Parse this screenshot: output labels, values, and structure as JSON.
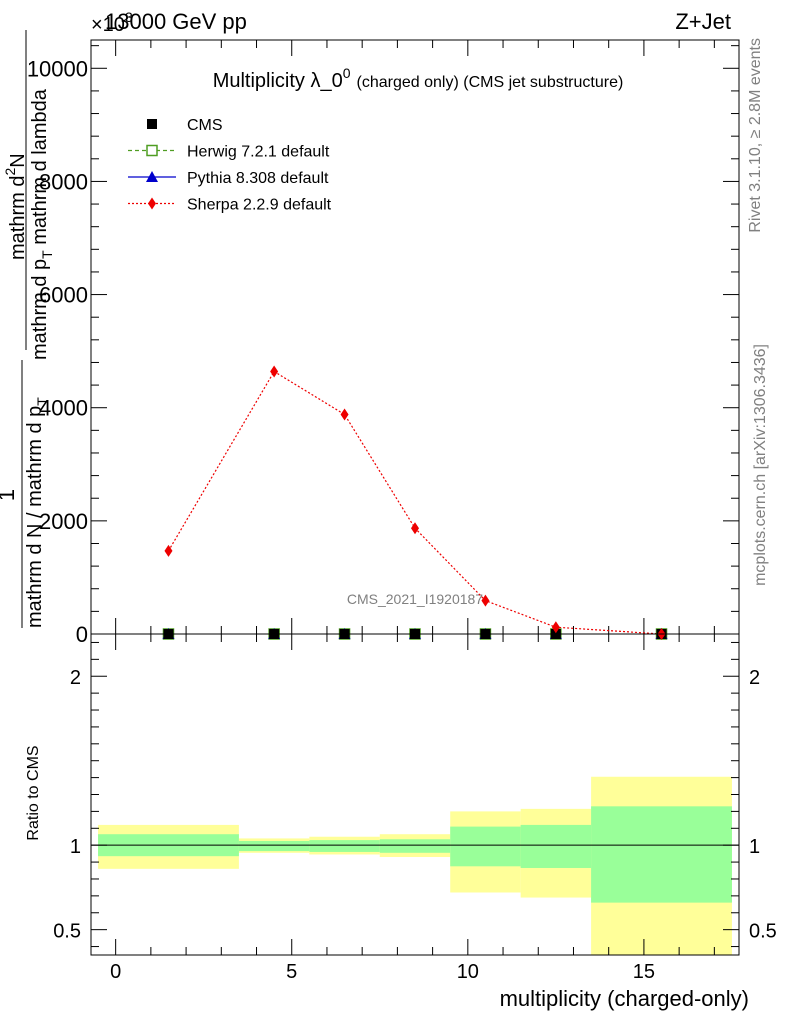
{
  "header": {
    "energy_label": "13000 GeV pp",
    "process_label": "Z+Jet",
    "exponent_label": "×10",
    "exponent_power": "3"
  },
  "side_labels": {
    "rivet": "Rivet 3.1.10, ≥ 2.8M events",
    "mcplots": "mcplots.cern.ch [arXiv:1306.3436]"
  },
  "chart_data": [
    {
      "type": "scatter",
      "title_main": "Multiplicity λ_0",
      "title_sup": "0",
      "title_small": "(charged only) (CMS jet substructure)",
      "watermark": "CMS_2021_I1920187",
      "ylabel_numerator_1": "mathrm d",
      "ylabel_numerator_sup": "2",
      "ylabel_numerator_2": "N",
      "ylabel_denominator_1": "mathrm d p",
      "ylabel_denominator_sub": "T",
      "ylabel_denominator_2": " mathrm d lambda",
      "ylabel_prefix_one": "1",
      "ylabel_prefix_den_1": "mathrm d N / mathrm d p",
      "ylabel_prefix_den_sub": "T",
      "ylim": [
        0,
        10500
      ],
      "xlim": [
        -0.7,
        17.7
      ],
      "y_ticks": [
        0,
        2000,
        4000,
        6000,
        8000,
        10000
      ],
      "y_tick_labels": [
        "0",
        "2000",
        "4000",
        "6000",
        "8000",
        "10000"
      ],
      "legend_position": "top-left",
      "legend": [
        {
          "name": "CMS",
          "color": "#000000",
          "marker": "square"
        },
        {
          "name": "Herwig 7.2.1 default",
          "color": "#4f9d22",
          "marker": "open-square",
          "line": "dashed"
        },
        {
          "name": "Pythia 8.308 default",
          "color": "#0000cc",
          "marker": "triangle",
          "line": "solid"
        },
        {
          "name": "Sherpa 2.2.9 default",
          "color": "#ee0000",
          "marker": "diamond",
          "line": "dotted"
        }
      ],
      "series": [
        {
          "name": "CMS",
          "x": [
            1.5,
            4.5,
            6.5,
            8.5,
            10.5,
            12.5,
            15.5
          ],
          "y": [
            0,
            0,
            0,
            0,
            0,
            0,
            0
          ]
        },
        {
          "name": "Sherpa 2.2.9 default",
          "x": [
            1.5,
            4.5,
            6.5,
            8.5,
            10.5,
            12.5,
            15.5
          ],
          "y": [
            1470,
            4640,
            3880,
            1870,
            590,
            120,
            0
          ]
        }
      ]
    },
    {
      "type": "area",
      "ylabel": "Ratio to CMS",
      "xlabel": "multiplicity (charged-only)",
      "xlim": [
        -0.7,
        17.7
      ],
      "ylim": [
        0.35,
        2.25
      ],
      "x_ticks": [
        0,
        5,
        10,
        15
      ],
      "x_tick_labels": [
        "0",
        "5",
        "10",
        "15"
      ],
      "y_ticks": [
        0.5,
        1,
        2
      ],
      "y_tick_labels": [
        "0.5",
        "1",
        "2"
      ],
      "bins": [
        {
          "lo": -0.5,
          "hi": 3.5,
          "stat_lo": 0.935,
          "stat_hi": 1.065,
          "tot_lo": 0.86,
          "tot_hi": 1.12
        },
        {
          "lo": 3.5,
          "hi": 5.5,
          "stat_lo": 0.965,
          "stat_hi": 1.025,
          "tot_lo": 0.955,
          "tot_hi": 1.04
        },
        {
          "lo": 5.5,
          "hi": 7.5,
          "stat_lo": 0.96,
          "stat_hi": 1.03,
          "tot_lo": 0.945,
          "tot_hi": 1.05
        },
        {
          "lo": 7.5,
          "hi": 9.5,
          "stat_lo": 0.955,
          "stat_hi": 1.035,
          "tot_lo": 0.93,
          "tot_hi": 1.065
        },
        {
          "lo": 9.5,
          "hi": 11.5,
          "stat_lo": 0.875,
          "stat_hi": 1.11,
          "tot_lo": 0.72,
          "tot_hi": 1.2
        },
        {
          "lo": 11.5,
          "hi": 13.5,
          "stat_lo": 0.865,
          "stat_hi": 1.12,
          "tot_lo": 0.69,
          "tot_hi": 1.215
        },
        {
          "lo": 13.5,
          "hi": 17.5,
          "stat_lo": 0.66,
          "stat_hi": 1.23,
          "tot_lo": 0.35,
          "tot_hi": 1.405
        }
      ],
      "reference_line": 1,
      "colors": {
        "stat": "#99ff99",
        "total": "#ffff99"
      }
    }
  ]
}
